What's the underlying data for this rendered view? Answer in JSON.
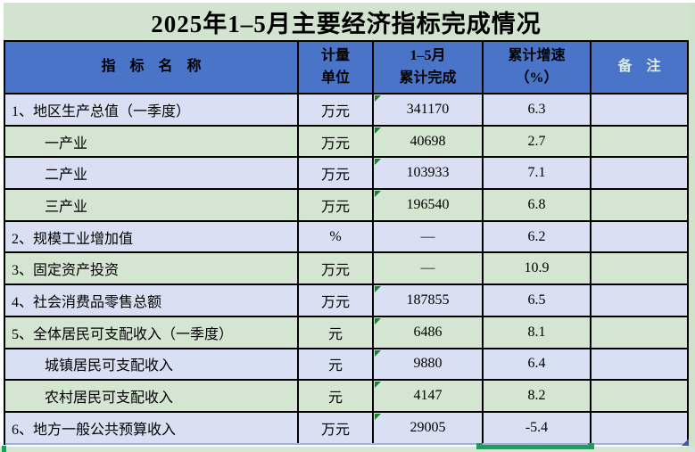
{
  "title": "2025年1–5月主要经济指标完成情况",
  "colors": {
    "header_bg": "#4a74c8",
    "title_bg": "#d2e4cf",
    "row_blue": "#d9e0f4",
    "row_green": "#d4e6d1",
    "strip_green": "#cfe2cb",
    "remark_header_text": "#dbe9d6",
    "grid_black": "#000000",
    "flag_green": "#1e7e34",
    "selection_green": "#18a05c",
    "fill_handle_blue": "#3a57a8"
  },
  "table": {
    "columns": [
      {
        "label": "指　标　名　称"
      },
      {
        "label": "计量\n单位"
      },
      {
        "label": "1–5月\n累计完成"
      },
      {
        "label": "累计增速\n（%）"
      },
      {
        "label": "备　注"
      }
    ],
    "rows": [
      {
        "name": "1、地区生产总值（一季度）",
        "unit": "万元",
        "value": "341170",
        "growth": "6.3",
        "remark": "",
        "indent": false
      },
      {
        "name": "一产业",
        "unit": "万元",
        "value": "40698",
        "growth": "2.7",
        "remark": "",
        "indent": true
      },
      {
        "name": "二产业",
        "unit": "万元",
        "value": "103933",
        "growth": "7.1",
        "remark": "",
        "indent": true
      },
      {
        "name": "三产业",
        "unit": "万元",
        "value": "196540",
        "growth": "6.8",
        "remark": "",
        "indent": true
      },
      {
        "name": "2、规模工业增加值",
        "unit": "%",
        "value": "—",
        "growth": "6.2",
        "remark": "",
        "indent": false
      },
      {
        "name": "3、固定资产投资",
        "unit": "万元",
        "value": "—",
        "growth": "10.9",
        "remark": "",
        "indent": false
      },
      {
        "name": "4、社会消费品零售总额",
        "unit": "万元",
        "value": "187855",
        "growth": "6.5",
        "remark": "",
        "indent": false
      },
      {
        "name": "5、全体居民可支配收入（一季度）",
        "unit": "元",
        "value": "6486",
        "growth": "8.1",
        "remark": "",
        "indent": false
      },
      {
        "name": "城镇居民可支配收入",
        "unit": "元",
        "value": "9880",
        "growth": "6.4",
        "remark": "",
        "indent": true
      },
      {
        "name": "农村居民可支配收入",
        "unit": "元",
        "value": "4147",
        "growth": "8.2",
        "remark": "",
        "indent": true
      },
      {
        "name": "6、地方一般公共预算收入",
        "unit": "万元",
        "value": "29005",
        "growth": "-5.4",
        "remark": "",
        "indent": false
      }
    ]
  }
}
